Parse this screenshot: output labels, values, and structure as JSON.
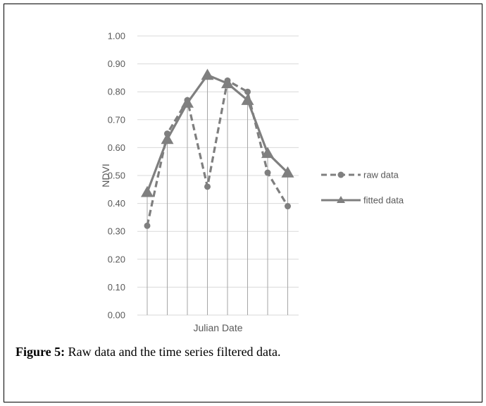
{
  "caption": {
    "label": "Figure 5:",
    "text": " Raw data and the time series filtered data."
  },
  "colors": {
    "series": "#7f7f7f",
    "grid": "#d9d9d9",
    "text": "#595959"
  },
  "chart_data": {
    "type": "line",
    "title": "",
    "xlabel": "Julian Date",
    "ylabel": "NDVI",
    "ylim": [
      0,
      1
    ],
    "yticks": [
      "0.00",
      "0.10",
      "0.20",
      "0.30",
      "0.40",
      "0.50",
      "0.60",
      "0.70",
      "0.80",
      "0.90",
      "1.00"
    ],
    "grid": "horizontal",
    "drop_lines": true,
    "legend": "right",
    "series": [
      {
        "name": "raw data",
        "marker": "circle",
        "line": "dashed",
        "values": [
          0.32,
          0.65,
          0.77,
          0.46,
          0.84,
          0.8,
          0.51,
          0.39
        ]
      },
      {
        "name": "fitted data",
        "marker": "triangle",
        "line": "solid",
        "values": [
          0.44,
          0.63,
          0.76,
          0.86,
          0.83,
          0.77,
          0.58,
          0.51
        ]
      }
    ]
  }
}
